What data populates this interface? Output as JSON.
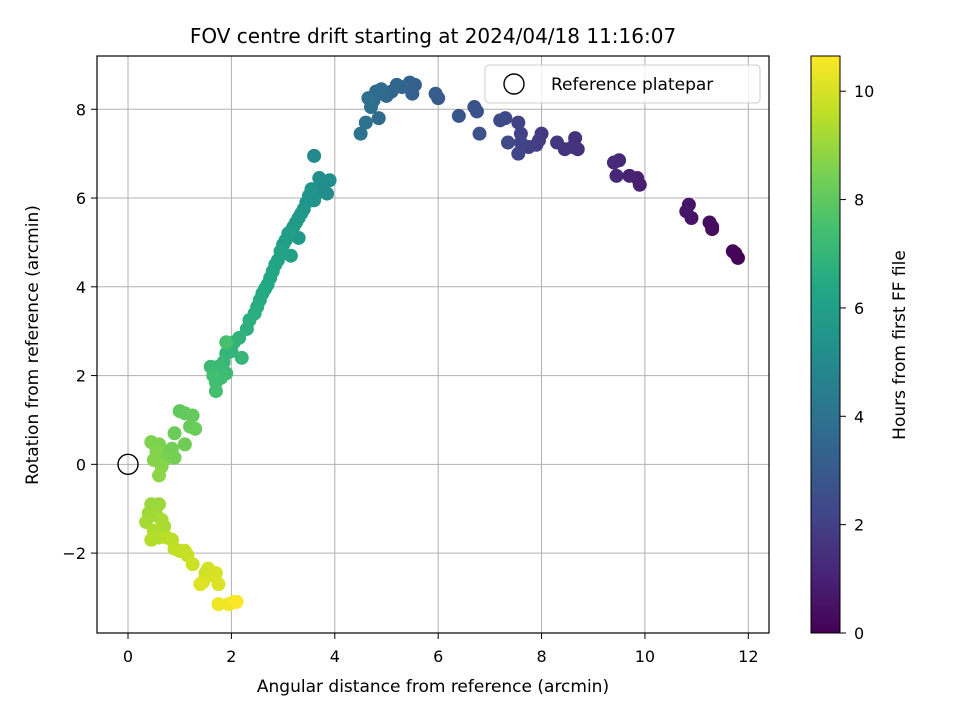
{
  "chart_data": {
    "type": "scatter",
    "title": "FOV centre drift starting at 2024/04/18 11:16:07",
    "xlabel": "Angular distance from reference (arcmin)",
    "ylabel": "Rotation from reference (arcmin)",
    "xlim": [
      -0.6,
      12.4
    ],
    "ylim": [
      -3.8,
      9.2
    ],
    "xticks": [
      0,
      2,
      4,
      6,
      8,
      10,
      12
    ],
    "yticks": [
      -2,
      0,
      2,
      4,
      6,
      8
    ],
    "grid": true,
    "legend": {
      "label": "Reference platepar",
      "placement": "top-right"
    },
    "reference_point": {
      "x": 0,
      "y": 0
    },
    "colorbar": {
      "label": "Hours from first FF file",
      "colormap": "viridis",
      "range": [
        0,
        10.65
      ],
      "ticks": [
        0,
        2,
        4,
        6,
        8,
        10
      ]
    },
    "points": [
      {
        "x": 11.8,
        "y": 4.65,
        "hours": 0.05
      },
      {
        "x": 11.75,
        "y": 4.75,
        "hours": 0.1
      },
      {
        "x": 11.7,
        "y": 4.8,
        "hours": 0.15
      },
      {
        "x": 11.3,
        "y": 5.3,
        "hours": 0.3
      },
      {
        "x": 11.25,
        "y": 5.45,
        "hours": 0.35
      },
      {
        "x": 11.3,
        "y": 5.35,
        "hours": 0.4
      },
      {
        "x": 10.9,
        "y": 5.55,
        "hours": 0.55
      },
      {
        "x": 10.85,
        "y": 5.85,
        "hours": 0.6
      },
      {
        "x": 10.8,
        "y": 5.7,
        "hours": 0.65
      },
      {
        "x": 9.9,
        "y": 6.3,
        "hours": 0.9
      },
      {
        "x": 9.85,
        "y": 6.45,
        "hours": 0.95
      },
      {
        "x": 9.7,
        "y": 6.5,
        "hours": 1.0
      },
      {
        "x": 9.5,
        "y": 6.85,
        "hours": 1.15
      },
      {
        "x": 9.45,
        "y": 6.5,
        "hours": 1.2
      },
      {
        "x": 9.4,
        "y": 6.8,
        "hours": 1.25
      },
      {
        "x": 8.7,
        "y": 7.1,
        "hours": 1.45
      },
      {
        "x": 8.65,
        "y": 7.35,
        "hours": 1.5
      },
      {
        "x": 8.6,
        "y": 7.15,
        "hours": 1.55
      },
      {
        "x": 8.45,
        "y": 7.1,
        "hours": 1.6
      },
      {
        "x": 8.3,
        "y": 7.25,
        "hours": 1.65
      },
      {
        "x": 8.0,
        "y": 7.45,
        "hours": 1.8
      },
      {
        "x": 7.95,
        "y": 7.3,
        "hours": 1.85
      },
      {
        "x": 7.9,
        "y": 7.2,
        "hours": 1.9
      },
      {
        "x": 7.75,
        "y": 7.15,
        "hours": 1.95
      },
      {
        "x": 7.6,
        "y": 7.45,
        "hours": 2.05
      },
      {
        "x": 7.55,
        "y": 7.7,
        "hours": 2.1
      },
      {
        "x": 7.6,
        "y": 7.25,
        "hours": 2.15
      },
      {
        "x": 7.55,
        "y": 7.0,
        "hours": 2.2
      },
      {
        "x": 7.3,
        "y": 7.8,
        "hours": 2.3
      },
      {
        "x": 7.35,
        "y": 7.25,
        "hours": 2.35
      },
      {
        "x": 7.2,
        "y": 7.75,
        "hours": 2.4
      },
      {
        "x": 6.8,
        "y": 7.45,
        "hours": 2.6
      },
      {
        "x": 6.75,
        "y": 7.95,
        "hours": 2.65
      },
      {
        "x": 6.7,
        "y": 8.05,
        "hours": 2.7
      },
      {
        "x": 6.4,
        "y": 7.85,
        "hours": 2.85
      },
      {
        "x": 6.0,
        "y": 8.25,
        "hours": 3.05
      },
      {
        "x": 5.95,
        "y": 8.35,
        "hours": 3.1
      },
      {
        "x": 5.55,
        "y": 8.55,
        "hours": 3.25
      },
      {
        "x": 5.5,
        "y": 8.35,
        "hours": 3.3
      },
      {
        "x": 5.45,
        "y": 8.6,
        "hours": 3.35
      },
      {
        "x": 5.3,
        "y": 8.5,
        "hours": 3.4
      },
      {
        "x": 5.2,
        "y": 8.55,
        "hours": 3.45
      },
      {
        "x": 5.1,
        "y": 8.4,
        "hours": 3.5
      },
      {
        "x": 5.0,
        "y": 8.3,
        "hours": 3.55
      },
      {
        "x": 4.95,
        "y": 8.35,
        "hours": 3.6
      },
      {
        "x": 4.9,
        "y": 8.45,
        "hours": 3.65
      },
      {
        "x": 4.85,
        "y": 7.8,
        "hours": 3.7
      },
      {
        "x": 4.8,
        "y": 8.4,
        "hours": 3.75
      },
      {
        "x": 4.75,
        "y": 8.2,
        "hours": 3.8
      },
      {
        "x": 4.7,
        "y": 8.05,
        "hours": 3.85
      },
      {
        "x": 4.65,
        "y": 8.25,
        "hours": 3.9
      },
      {
        "x": 4.6,
        "y": 7.7,
        "hours": 3.95
      },
      {
        "x": 4.5,
        "y": 7.45,
        "hours": 4.0
      },
      {
        "x": 3.6,
        "y": 6.95,
        "hours": 5.0
      },
      {
        "x": 3.9,
        "y": 6.4,
        "hours": 5.1
      },
      {
        "x": 3.85,
        "y": 6.1,
        "hours": 5.15
      },
      {
        "x": 3.75,
        "y": 6.3,
        "hours": 5.2
      },
      {
        "x": 3.7,
        "y": 6.45,
        "hours": 5.25
      },
      {
        "x": 3.65,
        "y": 6.1,
        "hours": 5.3
      },
      {
        "x": 3.6,
        "y": 5.95,
        "hours": 5.35
      },
      {
        "x": 3.55,
        "y": 6.2,
        "hours": 5.4
      },
      {
        "x": 3.5,
        "y": 6.05,
        "hours": 5.45
      },
      {
        "x": 3.45,
        "y": 5.9,
        "hours": 5.5
      },
      {
        "x": 3.4,
        "y": 5.75,
        "hours": 5.55
      },
      {
        "x": 3.35,
        "y": 5.65,
        "hours": 5.6
      },
      {
        "x": 3.3,
        "y": 5.55,
        "hours": 5.65
      },
      {
        "x": 3.3,
        "y": 5.1,
        "hours": 5.7
      },
      {
        "x": 3.25,
        "y": 5.45,
        "hours": 5.75
      },
      {
        "x": 3.2,
        "y": 5.35,
        "hours": 5.8
      },
      {
        "x": 3.15,
        "y": 5.25,
        "hours": 5.85
      },
      {
        "x": 3.1,
        "y": 5.2,
        "hours": 5.9
      },
      {
        "x": 3.05,
        "y": 5.05,
        "hours": 5.95
      },
      {
        "x": 3.0,
        "y": 4.95,
        "hours": 6.0
      },
      {
        "x": 3.15,
        "y": 4.7,
        "hours": 6.05
      },
      {
        "x": 2.95,
        "y": 4.8,
        "hours": 6.1
      },
      {
        "x": 2.9,
        "y": 4.6,
        "hours": 6.15
      },
      {
        "x": 2.85,
        "y": 4.5,
        "hours": 6.2
      },
      {
        "x": 2.8,
        "y": 4.35,
        "hours": 6.25
      },
      {
        "x": 2.75,
        "y": 4.2,
        "hours": 6.3
      },
      {
        "x": 2.7,
        "y": 4.05,
        "hours": 6.35
      },
      {
        "x": 2.65,
        "y": 3.95,
        "hours": 6.4
      },
      {
        "x": 2.6,
        "y": 3.85,
        "hours": 6.45
      },
      {
        "x": 2.55,
        "y": 3.7,
        "hours": 6.5
      },
      {
        "x": 2.5,
        "y": 3.55,
        "hours": 6.6
      },
      {
        "x": 2.45,
        "y": 3.4,
        "hours": 6.65
      },
      {
        "x": 2.35,
        "y": 3.25,
        "hours": 6.7
      },
      {
        "x": 2.3,
        "y": 3.05,
        "hours": 6.75
      },
      {
        "x": 2.15,
        "y": 2.85,
        "hours": 6.85
      },
      {
        "x": 2.05,
        "y": 2.75,
        "hours": 6.9
      },
      {
        "x": 2.0,
        "y": 2.55,
        "hours": 6.95
      },
      {
        "x": 1.9,
        "y": 2.5,
        "hours": 7.0
      },
      {
        "x": 2.2,
        "y": 2.4,
        "hours": 7.05
      },
      {
        "x": 1.85,
        "y": 2.3,
        "hours": 7.1
      },
      {
        "x": 1.75,
        "y": 2.2,
        "hours": 7.15
      },
      {
        "x": 1.6,
        "y": 2.2,
        "hours": 7.2
      },
      {
        "x": 1.9,
        "y": 2.05,
        "hours": 7.25
      },
      {
        "x": 1.8,
        "y": 1.95,
        "hours": 7.3
      },
      {
        "x": 1.7,
        "y": 1.85,
        "hours": 7.35
      },
      {
        "x": 1.65,
        "y": 2.0,
        "hours": 7.4
      },
      {
        "x": 1.7,
        "y": 1.65,
        "hours": 7.45
      },
      {
        "x": 1.9,
        "y": 2.75,
        "hours": 7.5
      },
      {
        "x": 1.0,
        "y": 1.2,
        "hours": 8.0
      },
      {
        "x": 1.1,
        "y": 1.15,
        "hours": 8.05
      },
      {
        "x": 1.25,
        "y": 1.1,
        "hours": 8.1
      },
      {
        "x": 1.2,
        "y": 0.85,
        "hours": 8.15
      },
      {
        "x": 1.3,
        "y": 0.8,
        "hours": 8.2
      },
      {
        "x": 0.9,
        "y": 0.7,
        "hours": 8.25
      },
      {
        "x": 1.1,
        "y": 0.45,
        "hours": 8.3
      },
      {
        "x": 0.85,
        "y": 0.35,
        "hours": 8.35
      },
      {
        "x": 0.8,
        "y": 0.25,
        "hours": 8.4
      },
      {
        "x": 0.9,
        "y": 0.15,
        "hours": 8.45
      },
      {
        "x": 0.7,
        "y": 0.1,
        "hours": 8.5
      },
      {
        "x": 0.6,
        "y": 0.45,
        "hours": 8.55
      },
      {
        "x": 0.45,
        "y": 0.5,
        "hours": 8.6
      },
      {
        "x": 0.55,
        "y": 0.3,
        "hours": 8.65
      },
      {
        "x": 0.5,
        "y": 0.1,
        "hours": 8.7
      },
      {
        "x": 0.65,
        "y": -0.05,
        "hours": 8.75
      },
      {
        "x": 0.6,
        "y": -0.25,
        "hours": 8.8
      },
      {
        "x": 0.45,
        "y": -0.9,
        "hours": 9.0
      },
      {
        "x": 0.6,
        "y": -0.9,
        "hours": 9.05
      },
      {
        "x": 0.4,
        "y": -1.1,
        "hours": 9.1
      },
      {
        "x": 0.55,
        "y": -1.15,
        "hours": 9.15
      },
      {
        "x": 0.35,
        "y": -1.3,
        "hours": 9.2
      },
      {
        "x": 0.65,
        "y": -1.25,
        "hours": 9.25
      },
      {
        "x": 0.7,
        "y": -1.4,
        "hours": 9.3
      },
      {
        "x": 0.5,
        "y": -1.5,
        "hours": 9.35
      },
      {
        "x": 0.6,
        "y": -1.65,
        "hours": 9.4
      },
      {
        "x": 0.45,
        "y": -1.7,
        "hours": 9.45
      },
      {
        "x": 0.75,
        "y": -1.65,
        "hours": 9.5
      },
      {
        "x": 0.85,
        "y": -1.7,
        "hours": 9.55
      },
      {
        "x": 0.9,
        "y": -1.9,
        "hours": 9.6
      },
      {
        "x": 1.0,
        "y": -1.95,
        "hours": 9.65
      },
      {
        "x": 1.1,
        "y": -1.95,
        "hours": 9.7
      },
      {
        "x": 1.15,
        "y": -2.05,
        "hours": 9.75
      },
      {
        "x": 1.25,
        "y": -2.25,
        "hours": 9.8
      },
      {
        "x": 1.5,
        "y": -2.45,
        "hours": 9.85
      },
      {
        "x": 1.55,
        "y": -2.35,
        "hours": 9.9
      },
      {
        "x": 1.6,
        "y": -2.5,
        "hours": 9.95
      },
      {
        "x": 1.7,
        "y": -2.45,
        "hours": 10.0
      },
      {
        "x": 1.45,
        "y": -2.65,
        "hours": 10.05
      },
      {
        "x": 1.75,
        "y": -2.7,
        "hours": 10.1
      },
      {
        "x": 1.4,
        "y": -2.7,
        "hours": 10.15
      },
      {
        "x": 1.75,
        "y": -3.15,
        "hours": 10.4
      },
      {
        "x": 1.95,
        "y": -3.15,
        "hours": 10.45
      },
      {
        "x": 2.05,
        "y": -3.1,
        "hours": 10.5
      },
      {
        "x": 2.1,
        "y": -3.1,
        "hours": 10.6
      }
    ]
  }
}
